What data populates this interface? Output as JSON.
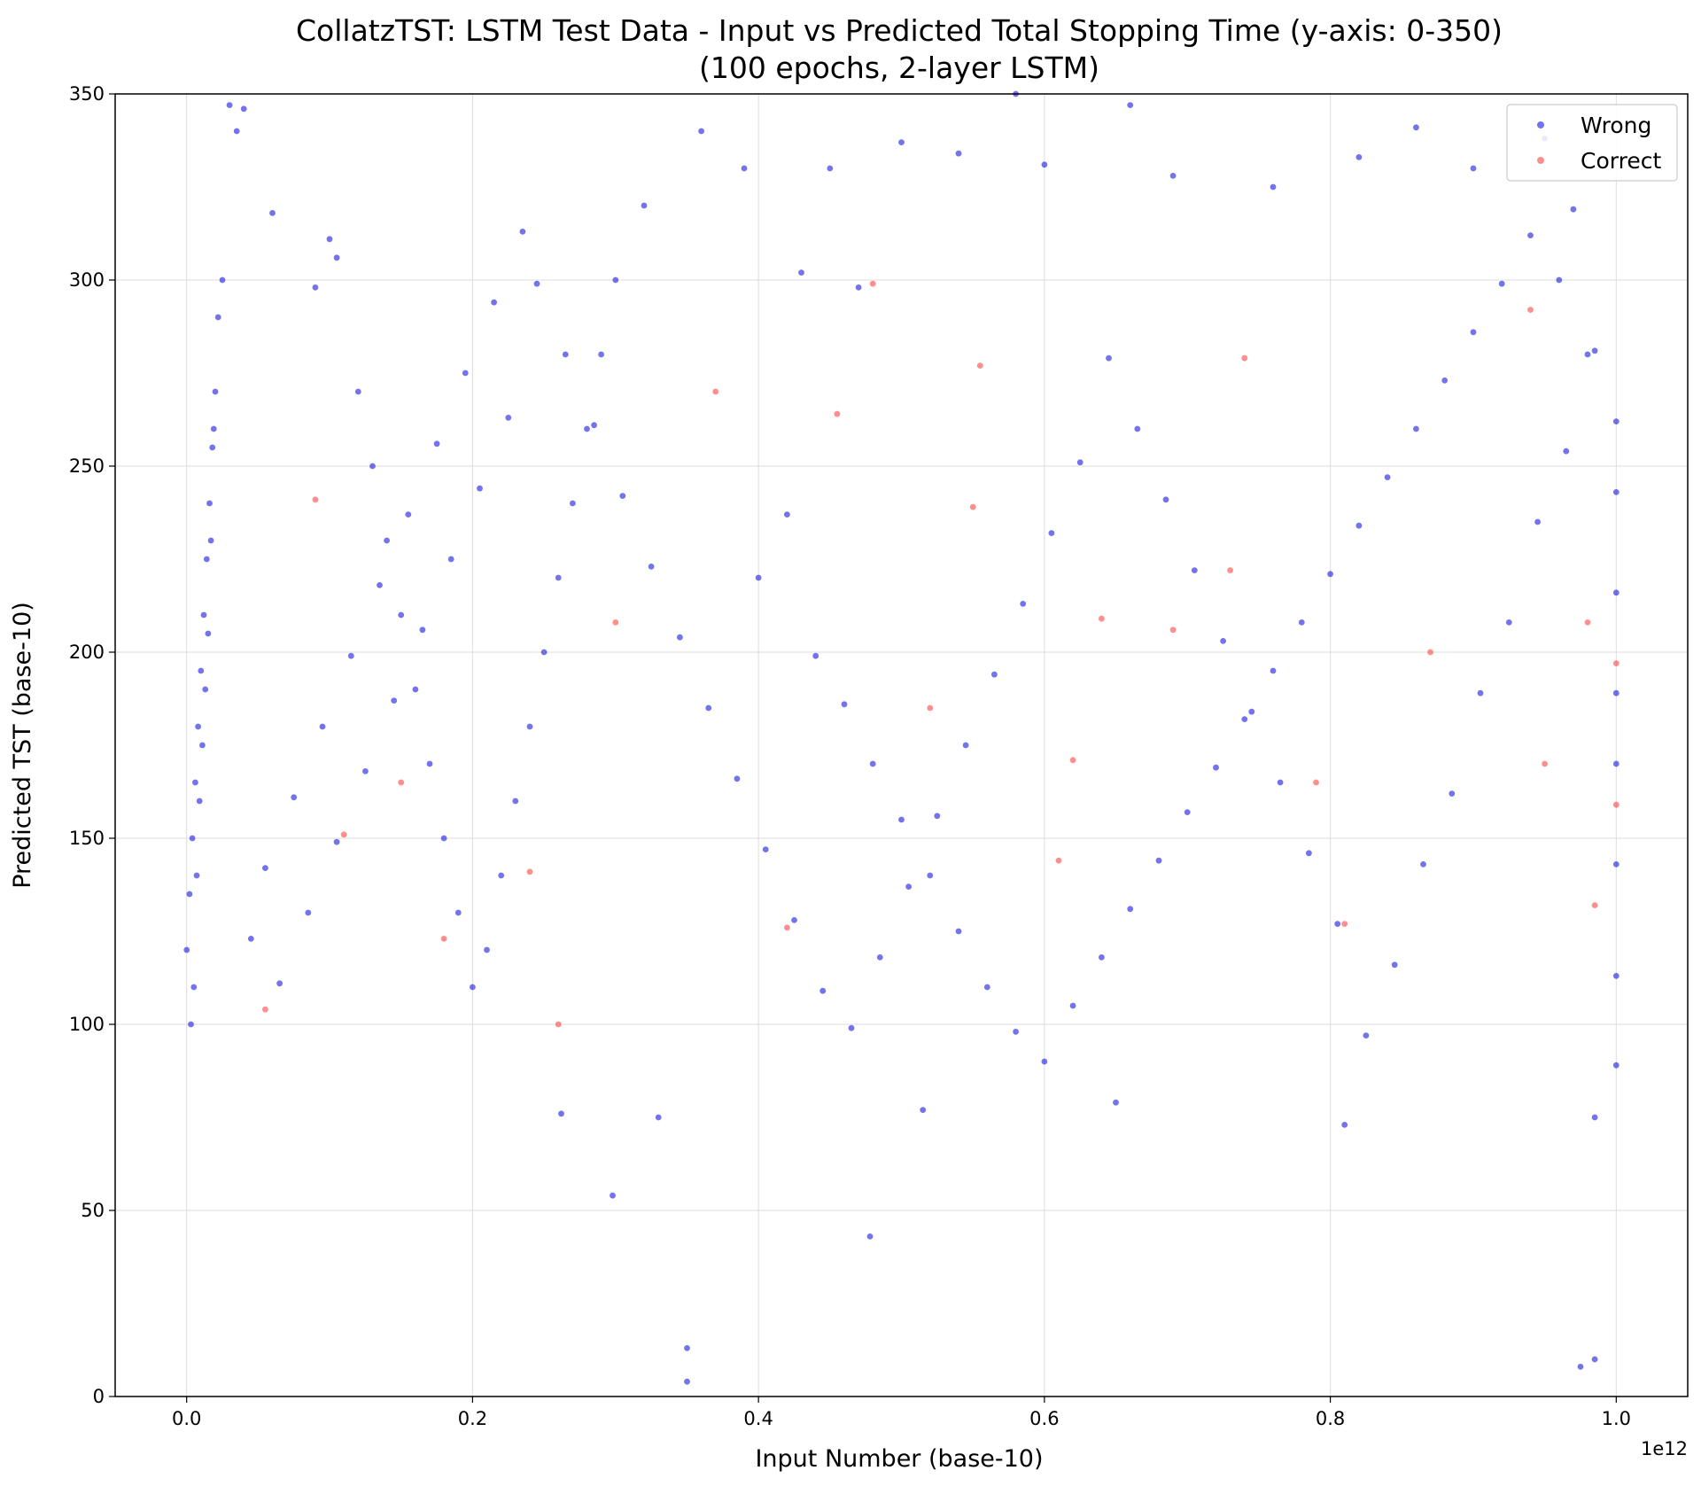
{
  "chart_data": {
    "type": "scatter",
    "title": "CollatzTST: LSTM Test Data - Input vs Predicted Total Stopping Time (y-axis: 0-350)",
    "subtitle": "(100 epochs, 2-layer LSTM)",
    "xlabel": "Input Number (base-10)",
    "ylabel": "Predicted TST (base-10)",
    "x_offset_label": "1e12",
    "xlim": [
      -0.05,
      1.05
    ],
    "ylim": [
      0,
      350
    ],
    "x_ticks": [
      0.0,
      0.2,
      0.4,
      0.6,
      0.8,
      1.0
    ],
    "x_tick_labels": [
      "0.0",
      "0.2",
      "0.4",
      "0.6",
      "0.8",
      "1.0"
    ],
    "y_ticks": [
      0,
      50,
      100,
      150,
      200,
      250,
      300,
      350
    ],
    "y_tick_labels": [
      "0",
      "50",
      "100",
      "150",
      "200",
      "250",
      "300",
      "350"
    ],
    "grid": true,
    "legend_position": "top-right",
    "colors": {
      "wrong": "#0000dd",
      "correct": "#ff3333"
    },
    "series": [
      {
        "name": "Wrong",
        "color": "#0000dd",
        "points": [
          [
            0.35,
            4
          ],
          [
            0.35,
            13
          ],
          [
            0.975,
            8
          ],
          [
            0.985,
            10
          ],
          [
            0.298,
            54
          ],
          [
            0.478,
            43
          ],
          [
            0.33,
            75
          ],
          [
            0.985,
            75
          ],
          [
            0.81,
            73
          ],
          [
            0.515,
            77
          ],
          [
            0.262,
            76
          ],
          [
            0.65,
            79
          ],
          [
            0.0,
            120
          ],
          [
            0.002,
            135
          ],
          [
            0.004,
            150
          ],
          [
            0.006,
            165
          ],
          [
            0.008,
            180
          ],
          [
            0.01,
            195
          ],
          [
            0.012,
            210
          ],
          [
            0.014,
            225
          ],
          [
            0.016,
            240
          ],
          [
            0.018,
            255
          ],
          [
            0.02,
            270
          ],
          [
            0.003,
            100
          ],
          [
            0.005,
            110
          ],
          [
            0.007,
            140
          ],
          [
            0.009,
            160
          ],
          [
            0.011,
            175
          ],
          [
            0.013,
            190
          ],
          [
            0.015,
            205
          ],
          [
            0.017,
            230
          ],
          [
            0.019,
            260
          ],
          [
            0.022,
            290
          ],
          [
            0.025,
            300
          ],
          [
            0.03,
            347
          ],
          [
            0.04,
            346
          ],
          [
            0.035,
            340
          ],
          [
            0.06,
            318
          ],
          [
            0.1,
            311
          ],
          [
            0.105,
            306
          ],
          [
            0.09,
            298
          ],
          [
            0.12,
            270
          ],
          [
            0.13,
            250
          ],
          [
            0.14,
            230
          ],
          [
            0.15,
            210
          ],
          [
            0.16,
            190
          ],
          [
            0.17,
            170
          ],
          [
            0.18,
            150
          ],
          [
            0.19,
            130
          ],
          [
            0.2,
            110
          ],
          [
            0.21,
            120
          ],
          [
            0.22,
            140
          ],
          [
            0.23,
            160
          ],
          [
            0.24,
            180
          ],
          [
            0.25,
            200
          ],
          [
            0.26,
            220
          ],
          [
            0.27,
            240
          ],
          [
            0.28,
            260
          ],
          [
            0.29,
            280
          ],
          [
            0.3,
            300
          ],
          [
            0.32,
            320
          ],
          [
            0.36,
            340
          ],
          [
            0.39,
            330
          ],
          [
            0.43,
            302
          ],
          [
            0.45,
            330
          ],
          [
            0.47,
            298
          ],
          [
            0.5,
            337
          ],
          [
            0.54,
            334
          ],
          [
            0.58,
            350
          ],
          [
            0.6,
            331
          ],
          [
            0.66,
            347
          ],
          [
            0.69,
            328
          ],
          [
            0.76,
            325
          ],
          [
            0.82,
            333
          ],
          [
            0.86,
            341
          ],
          [
            0.9,
            330
          ],
          [
            0.95,
            338
          ],
          [
            0.97,
            319
          ],
          [
            0.4,
            220
          ],
          [
            0.42,
            237
          ],
          [
            0.44,
            199
          ],
          [
            0.46,
            186
          ],
          [
            0.48,
            170
          ],
          [
            0.5,
            155
          ],
          [
            0.52,
            140
          ],
          [
            0.54,
            125
          ],
          [
            0.56,
            110
          ],
          [
            0.58,
            98
          ],
          [
            0.6,
            90
          ],
          [
            0.62,
            105
          ],
          [
            0.64,
            118
          ],
          [
            0.66,
            131
          ],
          [
            0.68,
            144
          ],
          [
            0.7,
            157
          ],
          [
            0.72,
            169
          ],
          [
            0.74,
            182
          ],
          [
            0.76,
            195
          ],
          [
            0.78,
            208
          ],
          [
            0.8,
            221
          ],
          [
            0.82,
            234
          ],
          [
            0.84,
            247
          ],
          [
            0.86,
            260
          ],
          [
            0.88,
            273
          ],
          [
            0.9,
            286
          ],
          [
            0.92,
            299
          ],
          [
            0.94,
            312
          ],
          [
            0.96,
            300
          ],
          [
            0.98,
            280
          ],
          [
            1.0,
            262
          ],
          [
            1.0,
            243
          ],
          [
            1.0,
            216
          ],
          [
            1.0,
            189
          ],
          [
            1.0,
            170
          ],
          [
            1.0,
            143
          ],
          [
            1.0,
            113
          ],
          [
            1.0,
            89
          ],
          [
            0.985,
            281
          ],
          [
            0.965,
            254
          ],
          [
            0.945,
            235
          ],
          [
            0.925,
            208
          ],
          [
            0.905,
            189
          ],
          [
            0.885,
            162
          ],
          [
            0.865,
            143
          ],
          [
            0.845,
            116
          ],
          [
            0.825,
            97
          ],
          [
            0.805,
            127
          ],
          [
            0.785,
            146
          ],
          [
            0.765,
            165
          ],
          [
            0.745,
            184
          ],
          [
            0.725,
            203
          ],
          [
            0.705,
            222
          ],
          [
            0.685,
            241
          ],
          [
            0.665,
            260
          ],
          [
            0.645,
            279
          ],
          [
            0.625,
            251
          ],
          [
            0.605,
            232
          ],
          [
            0.585,
            213
          ],
          [
            0.565,
            194
          ],
          [
            0.545,
            175
          ],
          [
            0.525,
            156
          ],
          [
            0.505,
            137
          ],
          [
            0.485,
            118
          ],
          [
            0.465,
            99
          ],
          [
            0.445,
            109
          ],
          [
            0.425,
            128
          ],
          [
            0.405,
            147
          ],
          [
            0.385,
            166
          ],
          [
            0.365,
            185
          ],
          [
            0.345,
            204
          ],
          [
            0.325,
            223
          ],
          [
            0.305,
            242
          ],
          [
            0.285,
            261
          ],
          [
            0.265,
            280
          ],
          [
            0.245,
            299
          ],
          [
            0.225,
            263
          ],
          [
            0.205,
            244
          ],
          [
            0.185,
            225
          ],
          [
            0.165,
            206
          ],
          [
            0.145,
            187
          ],
          [
            0.125,
            168
          ],
          [
            0.105,
            149
          ],
          [
            0.085,
            130
          ],
          [
            0.065,
            111
          ],
          [
            0.045,
            123
          ],
          [
            0.055,
            142
          ],
          [
            0.075,
            161
          ],
          [
            0.095,
            180
          ],
          [
            0.115,
            199
          ],
          [
            0.135,
            218
          ],
          [
            0.155,
            237
          ],
          [
            0.175,
            256
          ],
          [
            0.195,
            275
          ],
          [
            0.215,
            294
          ],
          [
            0.235,
            313
          ]
        ]
      },
      {
        "name": "Correct",
        "color": "#ff3333",
        "points": [
          [
            0.055,
            104
          ],
          [
            0.09,
            241
          ],
          [
            0.18,
            123
          ],
          [
            0.26,
            100
          ],
          [
            0.37,
            270
          ],
          [
            0.455,
            264
          ],
          [
            0.48,
            299
          ],
          [
            0.555,
            277
          ],
          [
            0.64,
            209
          ],
          [
            0.74,
            279
          ],
          [
            0.73,
            222
          ],
          [
            0.985,
            132
          ],
          [
            0.98,
            208
          ],
          [
            0.94,
            292
          ],
          [
            0.55,
            239
          ],
          [
            0.52,
            185
          ],
          [
            0.62,
            171
          ],
          [
            0.79,
            165
          ],
          [
            0.81,
            127
          ],
          [
            0.95,
            170
          ],
          [
            1.0,
            197
          ],
          [
            1.0,
            159
          ],
          [
            0.87,
            200
          ],
          [
            0.69,
            206
          ],
          [
            0.42,
            126
          ],
          [
            0.3,
            208
          ],
          [
            0.24,
            141
          ],
          [
            0.15,
            165
          ],
          [
            0.11,
            151
          ],
          [
            0.61,
            144
          ]
        ]
      }
    ]
  },
  "legend": {
    "wrong_label": "Wrong",
    "correct_label": "Correct"
  }
}
